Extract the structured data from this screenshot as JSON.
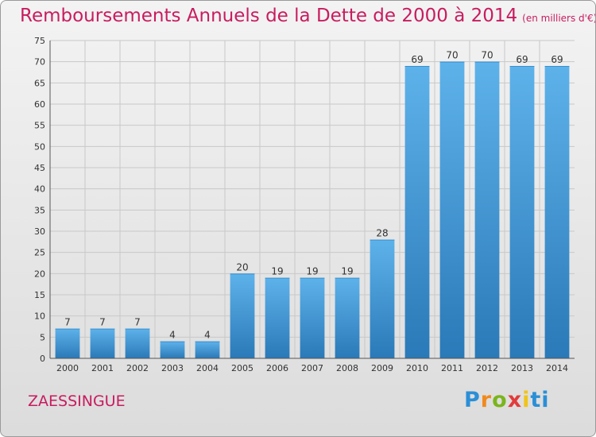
{
  "title": "Remboursements Annuels de la Dette de 2000 à 2014",
  "subtitle": "(en milliers d'€)",
  "entity": "ZAESSINGUE",
  "logo": "Proxiti",
  "colors": {
    "title": "#c81c5f",
    "bar_light": "#5eb2ea",
    "bar_dark": "#2a79b8",
    "grid": "#c8c8c8"
  },
  "chart_data": {
    "type": "bar",
    "categories": [
      "2000",
      "2001",
      "2002",
      "2003",
      "2004",
      "2005",
      "2006",
      "2007",
      "2008",
      "2009",
      "2010",
      "2011",
      "2012",
      "2013",
      "2014"
    ],
    "values": [
      7,
      7,
      7,
      4,
      4,
      20,
      19,
      19,
      19,
      28,
      69,
      70,
      70,
      69,
      69
    ],
    "title": "Remboursements Annuels de la Dette de 2000 à 2014",
    "xlabel": "",
    "ylabel": "",
    "ylim": [
      0,
      75
    ],
    "yticks": [
      0,
      5,
      10,
      15,
      20,
      25,
      30,
      35,
      40,
      45,
      50,
      55,
      60,
      65,
      70,
      75
    ],
    "grid": true,
    "data_labels": true
  }
}
